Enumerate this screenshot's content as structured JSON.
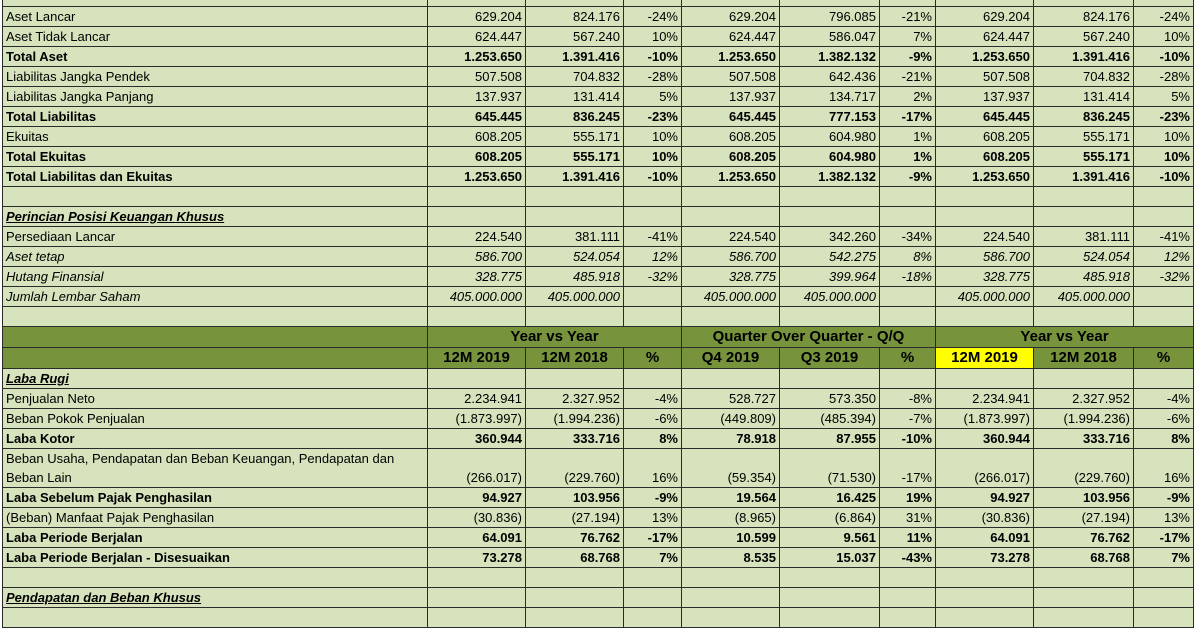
{
  "balance_rows": [
    {
      "label": "Aset Lancar",
      "v": [
        "629.204",
        "824.176",
        "-24%",
        "629.204",
        "796.085",
        "-21%",
        "629.204",
        "824.176",
        "-24%"
      ],
      "style": ""
    },
    {
      "label": "Aset Tidak Lancar",
      "v": [
        "624.447",
        "567.240",
        "10%",
        "624.447",
        "586.047",
        "7%",
        "624.447",
        "567.240",
        "10%"
      ],
      "style": ""
    },
    {
      "label": "Total Aset",
      "v": [
        "1.253.650",
        "1.391.416",
        "-10%",
        "1.253.650",
        "1.382.132",
        "-9%",
        "1.253.650",
        "1.391.416",
        "-10%"
      ],
      "style": "bold"
    },
    {
      "label": "Liabilitas Jangka Pendek",
      "v": [
        "507.508",
        "704.832",
        "-28%",
        "507.508",
        "642.436",
        "-21%",
        "507.508",
        "704.832",
        "-28%"
      ],
      "style": ""
    },
    {
      "label": "Liabilitas Jangka Panjang",
      "v": [
        "137.937",
        "131.414",
        "5%",
        "137.937",
        "134.717",
        "2%",
        "137.937",
        "131.414",
        "5%"
      ],
      "style": ""
    },
    {
      "label": "Total Liabilitas",
      "v": [
        "645.445",
        "836.245",
        "-23%",
        "645.445",
        "777.153",
        "-17%",
        "645.445",
        "836.245",
        "-23%"
      ],
      "style": "bold"
    },
    {
      "label": "Ekuitas",
      "v": [
        "608.205",
        "555.171",
        "10%",
        "608.205",
        "604.980",
        "1%",
        "608.205",
        "555.171",
        "10%"
      ],
      "style": ""
    },
    {
      "label": "Total Ekuitas",
      "v": [
        "608.205",
        "555.171",
        "10%",
        "608.205",
        "604.980",
        "1%",
        "608.205",
        "555.171",
        "10%"
      ],
      "style": "bold"
    },
    {
      "label": "Total Liabilitas dan Ekuitas",
      "v": [
        "1.253.650",
        "1.391.416",
        "-10%",
        "1.253.650",
        "1.382.132",
        "-9%",
        "1.253.650",
        "1.391.416",
        "-10%"
      ],
      "style": "bold"
    }
  ],
  "special_section": {
    "title": "Perincian Posisi Keuangan Khusus",
    "rows": [
      {
        "label": "Persediaan Lancar",
        "v": [
          "224.540",
          "381.111",
          "-41%",
          "224.540",
          "342.260",
          "-34%",
          "224.540",
          "381.111",
          "-41%"
        ],
        "style": ""
      },
      {
        "label": "Aset tetap",
        "v": [
          "586.700",
          "524.054",
          "12%",
          "586.700",
          "542.275",
          "8%",
          "586.700",
          "524.054",
          "12%"
        ],
        "style": "italic"
      },
      {
        "label": "Hutang Finansial",
        "v": [
          "328.775",
          "485.918",
          "-32%",
          "328.775",
          "399.964",
          "-18%",
          "328.775",
          "485.918",
          "-32%"
        ],
        "style": "italic"
      },
      {
        "label": "Jumlah Lembar Saham",
        "v": [
          "405.000.000",
          "405.000.000",
          "",
          "405.000.000",
          "405.000.000",
          "",
          "405.000.000",
          "405.000.000",
          ""
        ],
        "style": "italic"
      }
    ]
  },
  "period_headers": {
    "groups": [
      "Year vs Year",
      "Quarter Over Quarter - Q/Q",
      "Year vs Year"
    ],
    "columns": [
      "12M 2019",
      "12M 2018",
      "%",
      "Q4 2019",
      "Q3 2019",
      "%",
      "12M 2019",
      "12M 2018",
      "%"
    ]
  },
  "income_section": {
    "title": "Laba Rugi",
    "rows": [
      {
        "label": "Penjualan Neto",
        "v": [
          "2.234.941",
          "2.327.952",
          "-4%",
          "528.727",
          "573.350",
          "-8%",
          "2.234.941",
          "2.327.952",
          "-4%"
        ],
        "style": ""
      },
      {
        "label": "Beban Pokok Penjualan",
        "v": [
          "(1.873.997)",
          "(1.994.236)",
          "-6%",
          "(449.809)",
          "(485.394)",
          "-7%",
          "(1.873.997)",
          "(1.994.236)",
          "-6%"
        ],
        "style": ""
      },
      {
        "label": "Laba Kotor",
        "v": [
          "360.944",
          "333.716",
          "8%",
          "78.918",
          "87.955",
          "-10%",
          "360.944",
          "333.716",
          "8%"
        ],
        "style": "bold"
      },
      {
        "label": "Beban Usaha, Pendapatan dan Beban Keuangan, Pendapatan dan Beban Lain",
        "v": [
          "(266.017)",
          "(229.760)",
          "16%",
          "(59.354)",
          "(71.530)",
          "-17%",
          "(266.017)",
          "(229.760)",
          "16%"
        ],
        "style": "tall"
      },
      {
        "label": "Laba Sebelum Pajak Penghasilan",
        "v": [
          "94.927",
          "103.956",
          "-9%",
          "19.564",
          "16.425",
          "19%",
          "94.927",
          "103.956",
          "-9%"
        ],
        "style": "bold"
      },
      {
        "label": "(Beban) Manfaat Pajak Penghasilan",
        "v": [
          "(30.836)",
          "(27.194)",
          "13%",
          "(8.965)",
          "(6.864)",
          "31%",
          "(30.836)",
          "(27.194)",
          "13%"
        ],
        "style": ""
      },
      {
        "label": "Laba Periode Berjalan",
        "v": [
          "64.091",
          "76.762",
          "-17%",
          "10.599",
          "9.561",
          "11%",
          "64.091",
          "76.762",
          "-17%"
        ],
        "style": "bold"
      },
      {
        "label": "Laba Periode Berjalan - Disesuaikan",
        "v": [
          "73.278",
          "68.768",
          "7%",
          "8.535",
          "15.037",
          "-43%",
          "73.278",
          "68.768",
          "7%"
        ],
        "style": "bold"
      }
    ]
  },
  "special_income_section": {
    "title": "Pendapatan dan Beban Khusus"
  },
  "colors": {
    "cell_fill": "#d6e3bc",
    "header_fill": "#77933c",
    "highlight": "#ffff00"
  }
}
